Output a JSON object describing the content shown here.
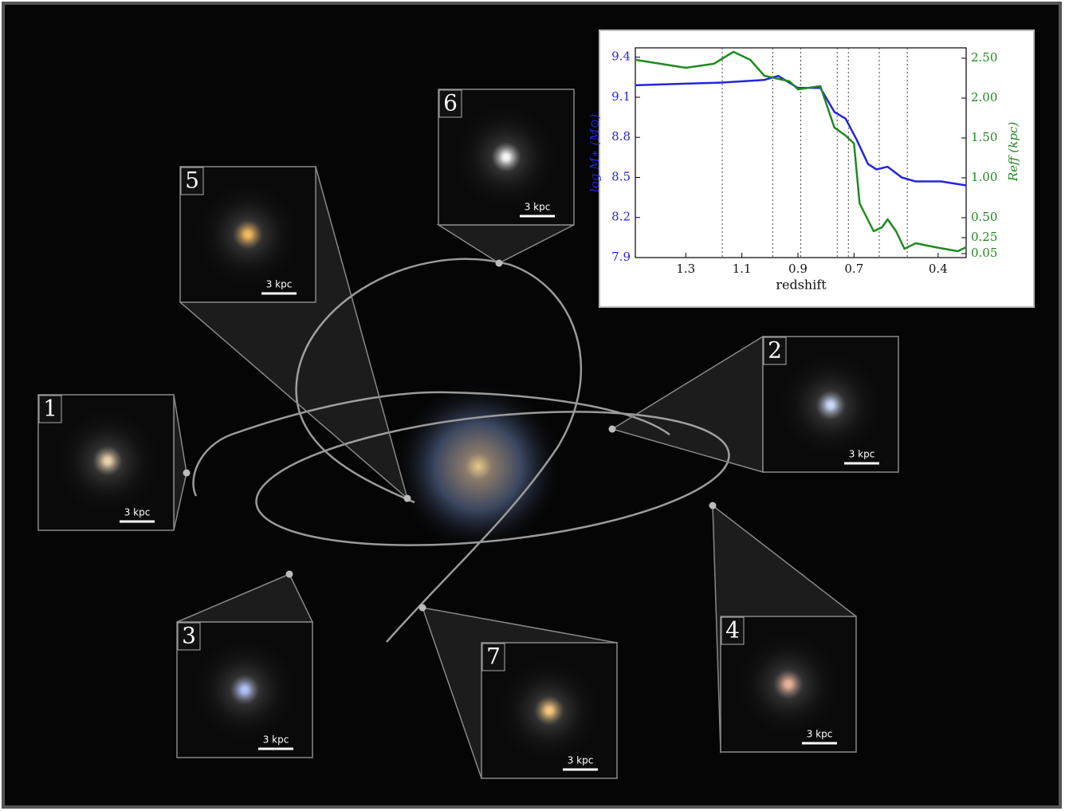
{
  "panels": [
    {
      "label": "1",
      "scale": "3 kpc"
    },
    {
      "label": "2",
      "scale": "3 kpc"
    },
    {
      "label": "3",
      "scale": "3 kpc"
    },
    {
      "label": "4",
      "scale": "3 kpc"
    },
    {
      "label": "5",
      "scale": "3 kpc"
    },
    {
      "label": "6",
      "scale": "3 kpc"
    },
    {
      "label": "7",
      "scale": "3 kpc"
    }
  ],
  "chart_data": {
    "type": "line",
    "xlabel": "redshift",
    "ylabel": "log M∗ (M⊙)",
    "y2label": "Reff (kpc)",
    "xlim": [
      1.48,
      0.3
    ],
    "xticks": [
      1.3,
      1.1,
      0.9,
      0.7,
      0.4
    ],
    "ylim": [
      7.9,
      9.47
    ],
    "yticks": [
      7.9,
      8.2,
      8.5,
      8.8,
      9.1,
      9.4
    ],
    "y2lim": [
      0,
      2.63
    ],
    "y2ticks": [
      {
        "value": 0.05,
        "label": "0.05"
      },
      {
        "value": 0.25,
        "label": "0.25"
      },
      {
        "value": 0.5,
        "label": "0.50"
      },
      {
        "value": 1,
        "label": "1.00"
      },
      {
        "value": 1.5,
        "label": "1.50"
      },
      {
        "value": 2,
        "label": "2.00"
      },
      {
        "value": 2.5,
        "label": "2.50"
      }
    ],
    "vlines": [
      1.17,
      0.99,
      0.89,
      0.76,
      0.72,
      0.61,
      0.51
    ],
    "series": [
      {
        "color": "#2424e0",
        "axis": "y",
        "x": [
          1.48,
          1.17,
          1.02,
          0.97,
          0.9,
          0.82,
          0.77,
          0.73,
          0.69,
          0.65,
          0.62,
          0.58,
          0.53,
          0.48,
          0.39,
          0.3
        ],
        "values": [
          9.19,
          9.21,
          9.23,
          9.26,
          9.17,
          9.17,
          8.99,
          8.94,
          8.78,
          8.6,
          8.56,
          8.58,
          8.5,
          8.47,
          8.47,
          8.44
        ]
      },
      {
        "color": "#1f8a1f",
        "axis": "y2",
        "x": [
          1.48,
          1.39,
          1.3,
          1.2,
          1.13,
          1.07,
          1.02,
          0.93,
          0.9,
          0.82,
          0.77,
          0.73,
          0.7,
          0.68,
          0.63,
          0.6,
          0.58,
          0.55,
          0.52,
          0.48,
          0.41,
          0.33,
          0.3
        ],
        "values": [
          2.48,
          2.43,
          2.38,
          2.43,
          2.58,
          2.48,
          2.28,
          2.21,
          2.11,
          2.15,
          1.63,
          1.53,
          1.43,
          0.68,
          0.33,
          0.38,
          0.48,
          0.33,
          0.11,
          0.18,
          0.13,
          0.08,
          0.13
        ]
      }
    ]
  }
}
